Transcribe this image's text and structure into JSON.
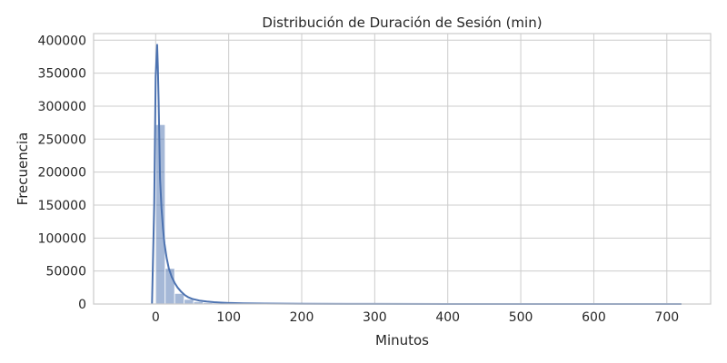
{
  "chart_data": {
    "type": "bar",
    "title": "Distribución de Duración de Sesión (min)",
    "xlabel": "Minutos",
    "ylabel": "Frecuencia",
    "xlim": [
      -85,
      760
    ],
    "ylim": [
      0,
      410000
    ],
    "grid": true,
    "x_ticks": [
      {
        "value": 0,
        "label": "0"
      },
      {
        "value": 100,
        "label": "100"
      },
      {
        "value": 200,
        "label": "200"
      },
      {
        "value": 300,
        "label": "300"
      },
      {
        "value": 400,
        "label": "400"
      },
      {
        "value": 500,
        "label": "500"
      },
      {
        "value": 600,
        "label": "600"
      },
      {
        "value": 700,
        "label": "700"
      }
    ],
    "y_ticks": [
      {
        "value": 0,
        "label": "0"
      },
      {
        "value": 50000,
        "label": "50000"
      },
      {
        "value": 100000,
        "label": "100000"
      },
      {
        "value": 150000,
        "label": "150000"
      },
      {
        "value": 200000,
        "label": "200000"
      },
      {
        "value": 250000,
        "label": "250000"
      },
      {
        "value": 300000,
        "label": "300000"
      },
      {
        "value": 350000,
        "label": "350000"
      },
      {
        "value": 400000,
        "label": "400000"
      }
    ],
    "histogram": {
      "bins": [
        {
          "x0": -50,
          "x1": -35,
          "count": 300
        },
        {
          "x0": -35,
          "x1": -20,
          "count": 200
        },
        {
          "x0": -20,
          "x1": -5,
          "count": 200
        },
        {
          "x0": -5,
          "x1": 0,
          "count": 0
        },
        {
          "x0": 0,
          "x1": 13,
          "count": 272000
        },
        {
          "x0": 13,
          "x1": 26,
          "count": 54000
        },
        {
          "x0": 26,
          "x1": 39,
          "count": 16000
        },
        {
          "x0": 39,
          "x1": 52,
          "count": 7000
        },
        {
          "x0": 52,
          "x1": 65,
          "count": 3500
        },
        {
          "x0": 65,
          "x1": 78,
          "count": 2000
        },
        {
          "x0": 78,
          "x1": 91,
          "count": 1500
        },
        {
          "x0": 91,
          "x1": 104,
          "count": 1000
        },
        {
          "x0": 104,
          "x1": 117,
          "count": 700
        },
        {
          "x0": 117,
          "x1": 130,
          "count": 500
        },
        {
          "x0": 130,
          "x1": 143,
          "count": 400
        },
        {
          "x0": 143,
          "x1": 156,
          "count": 300
        },
        {
          "x0": 156,
          "x1": 169,
          "count": 250
        },
        {
          "x0": 169,
          "x1": 182,
          "count": 200
        },
        {
          "x0": 182,
          "x1": 195,
          "count": 180
        },
        {
          "x0": 195,
          "x1": 208,
          "count": 150
        },
        {
          "x0": 208,
          "x1": 260,
          "count": 120
        },
        {
          "x0": 260,
          "x1": 330,
          "count": 100
        },
        {
          "x0": 330,
          "x1": 400,
          "count": 80
        },
        {
          "x0": 400,
          "x1": 470,
          "count": 60
        },
        {
          "x0": 470,
          "x1": 540,
          "count": 50
        },
        {
          "x0": 540,
          "x1": 610,
          "count": 40
        },
        {
          "x0": 610,
          "x1": 680,
          "count": 30
        },
        {
          "x0": 680,
          "x1": 720,
          "count": 20
        }
      ]
    },
    "kde": {
      "x": [
        -5,
        -2,
        0,
        1,
        2,
        3,
        4,
        5,
        6,
        8,
        10,
        12,
        15,
        18,
        22,
        26,
        30,
        35,
        40,
        45,
        50,
        60,
        70,
        80,
        90,
        100,
        120,
        150,
        200,
        300,
        400,
        500,
        600,
        720
      ],
      "y": [
        0,
        150000,
        345000,
        370000,
        393000,
        360000,
        310000,
        250000,
        190000,
        145000,
        115000,
        92000,
        70000,
        54000,
        41000,
        32000,
        25000,
        18500,
        13500,
        10000,
        7800,
        5200,
        3800,
        2800,
        2100,
        1600,
        1000,
        600,
        350,
        150,
        80,
        50,
        30,
        15
      ]
    },
    "colors": {
      "bar": "#4c72b0",
      "line": "#4c72b0",
      "grid": "#cccccc",
      "frame": "#cccccc",
      "text": "#262626"
    }
  }
}
